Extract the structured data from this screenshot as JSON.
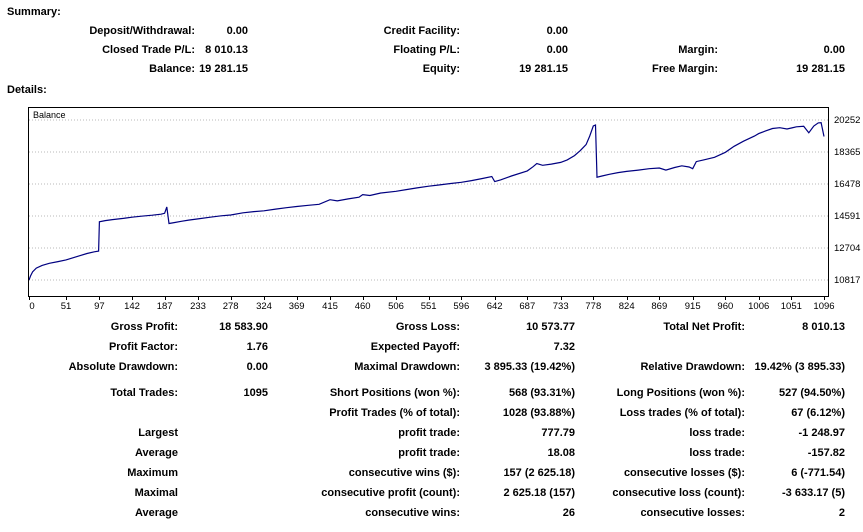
{
  "summary": {
    "heading": "Summary:",
    "rows": [
      [
        "Deposit/Withdrawal:",
        "0.00",
        "Credit Facility:",
        "0.00",
        "",
        ""
      ],
      [
        "Closed Trade P/L:",
        "8 010.13",
        "Floating P/L:",
        "0.00",
        "Margin:",
        "0.00"
      ],
      [
        "Balance:",
        "19 281.15",
        "Equity:",
        "19 281.15",
        "Free Margin:",
        "19 281.15"
      ]
    ]
  },
  "details": {
    "heading": "Details:"
  },
  "stats": {
    "rows": [
      [
        "Gross Profit:",
        "18 583.90",
        "Gross Loss:",
        "10 573.77",
        "Total Net Profit:",
        "8 010.13"
      ],
      [
        "Profit Factor:",
        "1.76",
        "Expected Payoff:",
        "7.32",
        "",
        ""
      ],
      [
        "Absolute Drawdown:",
        "0.00",
        "Maximal Drawdown:",
        "3 895.33 (19.42%)",
        "Relative Drawdown:",
        "19.42% (3 895.33)"
      ],
      [
        "Total Trades:",
        "1095",
        "Short Positions (won %):",
        "568 (93.31%)",
        "Long Positions (won %):",
        "527 (94.50%)"
      ],
      [
        "",
        "",
        "Profit Trades (% of total):",
        "1028 (93.88%)",
        "Loss trades (% of total):",
        "67 (6.12%)"
      ],
      [
        "Largest",
        "",
        "profit trade:",
        "777.79",
        "loss trade:",
        "-1 248.97"
      ],
      [
        "Average",
        "",
        "profit trade:",
        "18.08",
        "loss trade:",
        "-157.82"
      ],
      [
        "Maximum",
        "",
        "consecutive wins ($):",
        "157 (2 625.18)",
        "consecutive losses ($):",
        "6 (-771.54)"
      ],
      [
        "Maximal",
        "",
        "consecutive profit (count):",
        "2 625.18 (157)",
        "consecutive loss (count):",
        "-3 633.17 (5)"
      ],
      [
        "Average",
        "",
        "consecutive wins:",
        "26",
        "consecutive losses:",
        "2"
      ]
    ]
  },
  "chart_data": {
    "type": "line",
    "series_label": "Balance",
    "line_color": "#000080",
    "grid_color": "#b8b8b8",
    "x_ticks": [
      0,
      51,
      97,
      142,
      187,
      233,
      278,
      324,
      369,
      415,
      460,
      506,
      551,
      596,
      642,
      687,
      733,
      778,
      824,
      869,
      915,
      960,
      1006,
      1051,
      1096
    ],
    "y_ticks": [
      10817,
      12704,
      14591,
      16478,
      18365,
      20252
    ],
    "xlim": [
      0,
      1096
    ],
    "ylim": [
      10817,
      20252
    ],
    "points": [
      [
        0,
        10817
      ],
      [
        2,
        11050
      ],
      [
        5,
        11300
      ],
      [
        10,
        11520
      ],
      [
        18,
        11680
      ],
      [
        28,
        11800
      ],
      [
        40,
        11900
      ],
      [
        51,
        12000
      ],
      [
        60,
        12120
      ],
      [
        70,
        12250
      ],
      [
        80,
        12380
      ],
      [
        90,
        12480
      ],
      [
        96,
        12520
      ],
      [
        97,
        14250
      ],
      [
        105,
        14320
      ],
      [
        115,
        14380
      ],
      [
        130,
        14450
      ],
      [
        142,
        14520
      ],
      [
        155,
        14580
      ],
      [
        170,
        14640
      ],
      [
        182,
        14700
      ],
      [
        187,
        14750
      ],
      [
        190,
        15120
      ],
      [
        193,
        14150
      ],
      [
        200,
        14200
      ],
      [
        210,
        14280
      ],
      [
        220,
        14350
      ],
      [
        233,
        14420
      ],
      [
        250,
        14520
      ],
      [
        265,
        14600
      ],
      [
        278,
        14650
      ],
      [
        295,
        14780
      ],
      [
        310,
        14850
      ],
      [
        324,
        14900
      ],
      [
        340,
        15000
      ],
      [
        355,
        15080
      ],
      [
        369,
        15150
      ],
      [
        385,
        15220
      ],
      [
        400,
        15280
      ],
      [
        415,
        15550
      ],
      [
        425,
        15480
      ],
      [
        440,
        15600
      ],
      [
        455,
        15700
      ],
      [
        460,
        15850
      ],
      [
        470,
        15800
      ],
      [
        485,
        15950
      ],
      [
        506,
        16050
      ],
      [
        520,
        16150
      ],
      [
        535,
        16250
      ],
      [
        551,
        16350
      ],
      [
        565,
        16420
      ],
      [
        580,
        16500
      ],
      [
        596,
        16580
      ],
      [
        610,
        16680
      ],
      [
        625,
        16800
      ],
      [
        638,
        16920
      ],
      [
        642,
        16620
      ],
      [
        650,
        16720
      ],
      [
        665,
        16950
      ],
      [
        687,
        17250
      ],
      [
        695,
        17500
      ],
      [
        700,
        17680
      ],
      [
        708,
        17580
      ],
      [
        720,
        17650
      ],
      [
        733,
        17750
      ],
      [
        742,
        17900
      ],
      [
        752,
        18150
      ],
      [
        760,
        18450
      ],
      [
        768,
        18800
      ],
      [
        773,
        19300
      ],
      [
        778,
        19900
      ],
      [
        781,
        19960
      ],
      [
        783,
        16880
      ],
      [
        790,
        16950
      ],
      [
        800,
        17050
      ],
      [
        812,
        17150
      ],
      [
        824,
        17220
      ],
      [
        840,
        17300
      ],
      [
        855,
        17380
      ],
      [
        869,
        17420
      ],
      [
        878,
        17300
      ],
      [
        890,
        17450
      ],
      [
        900,
        17550
      ],
      [
        910,
        17480
      ],
      [
        915,
        17380
      ],
      [
        920,
        17800
      ],
      [
        930,
        17900
      ],
      [
        945,
        18050
      ],
      [
        960,
        18350
      ],
      [
        972,
        18700
      ],
      [
        985,
        19000
      ],
      [
        1000,
        19300
      ],
      [
        1006,
        19450
      ],
      [
        1015,
        19600
      ],
      [
        1025,
        19750
      ],
      [
        1035,
        19800
      ],
      [
        1045,
        19720
      ],
      [
        1051,
        19780
      ],
      [
        1058,
        19850
      ],
      [
        1068,
        19880
      ],
      [
        1075,
        19500
      ],
      [
        1082,
        19900
      ],
      [
        1088,
        20080
      ],
      [
        1092,
        20100
      ],
      [
        1096,
        19281
      ]
    ]
  }
}
